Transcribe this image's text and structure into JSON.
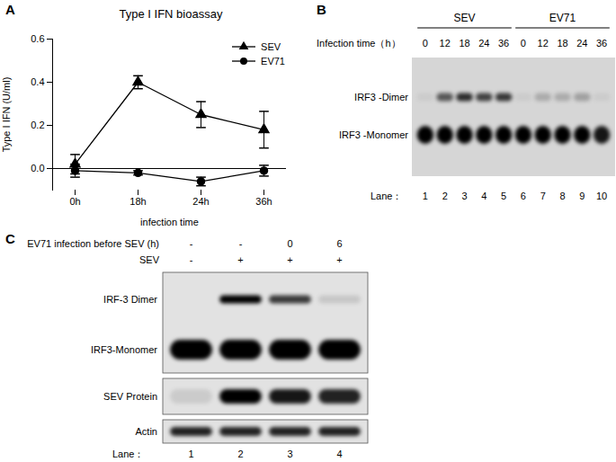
{
  "panel_labels": [
    "A",
    "B",
    "C"
  ],
  "chart_data": {
    "type": "line",
    "title": "Type I IFN bioassay",
    "x_label": "infection time",
    "y_label": "Type I IFN (U/ml)",
    "categories": [
      "0h",
      "18h",
      "24h",
      "36h"
    ],
    "series": [
      {
        "name": "SEV",
        "color": "#000000",
        "marker": "triangle",
        "values": [
          0.02,
          0.4,
          0.25,
          0.18
        ],
        "errors": [
          0.045,
          0.03,
          0.06,
          0.085
        ]
      },
      {
        "name": "EV71",
        "color": "#000000",
        "marker": "circle",
        "values": [
          -0.01,
          -0.02,
          -0.06,
          -0.01
        ],
        "errors": [
          0.03,
          0.01,
          0.02,
          0.025
        ]
      }
    ],
    "ylim": [
      -0.1,
      0.6
    ],
    "yticks": [
      {
        "value": 0,
        "label": "0.0"
      },
      {
        "value": 0.2,
        "label": "0.2"
      },
      {
        "value": 0.4,
        "label": "0.4"
      },
      {
        "value": 0.6,
        "label": "0.6"
      }
    ],
    "legend": "upper right",
    "grid": false
  },
  "blots": [
    {
      "groups": [
        {
          "label": "SEV",
          "lanes": [
            1,
            2,
            3,
            4,
            5
          ]
        },
        {
          "label": "EV71",
          "lanes": [
            6,
            7,
            8,
            9,
            10
          ]
        }
      ],
      "time_label": "Infection time（h）",
      "times": [
        0,
        12,
        18,
        24,
        36,
        0,
        12,
        18,
        24,
        36
      ],
      "rows": [
        {
          "label": "IRF3 -Dimer",
          "bands": [
            0.05,
            0.6,
            0.8,
            0.7,
            0.75,
            0.05,
            0.2,
            0.2,
            0.25,
            0.05
          ]
        },
        {
          "label": "IRF3 -Monomer",
          "bands": [
            1,
            1,
            1,
            1,
            1,
            1,
            1,
            1,
            1,
            0.9
          ]
        }
      ],
      "lane_label": "Lane：",
      "lanes": [
        1,
        2,
        3,
        4,
        5,
        6,
        7,
        8,
        9,
        10
      ]
    },
    {
      "conditions": [
        {
          "label": "EV71 infection before SEV (h)",
          "values": [
            "-",
            "-",
            "0",
            "6"
          ]
        },
        {
          "label": "SEV",
          "values": [
            "-",
            "+",
            "+",
            "+"
          ]
        }
      ],
      "membranes": [
        {
          "rows": [
            {
              "label": "IRF-3 Dimer",
              "bands": [
                0,
                1,
                0.75,
                0.12
              ]
            },
            {
              "label": "IRF3-Monomer",
              "bands": [
                1,
                1,
                1,
                1
              ]
            }
          ]
        },
        {
          "rows": [
            {
              "label": "SEV Protein",
              "bands": [
                0.1,
                1,
                0.9,
                0.85
              ]
            }
          ]
        },
        {
          "rows": [
            {
              "label": "Actin",
              "bands": [
                0.85,
                0.85,
                0.85,
                0.85
              ]
            }
          ]
        }
      ],
      "lane_label": "Lane：",
      "lanes": [
        1,
        2,
        3,
        4
      ]
    }
  ]
}
